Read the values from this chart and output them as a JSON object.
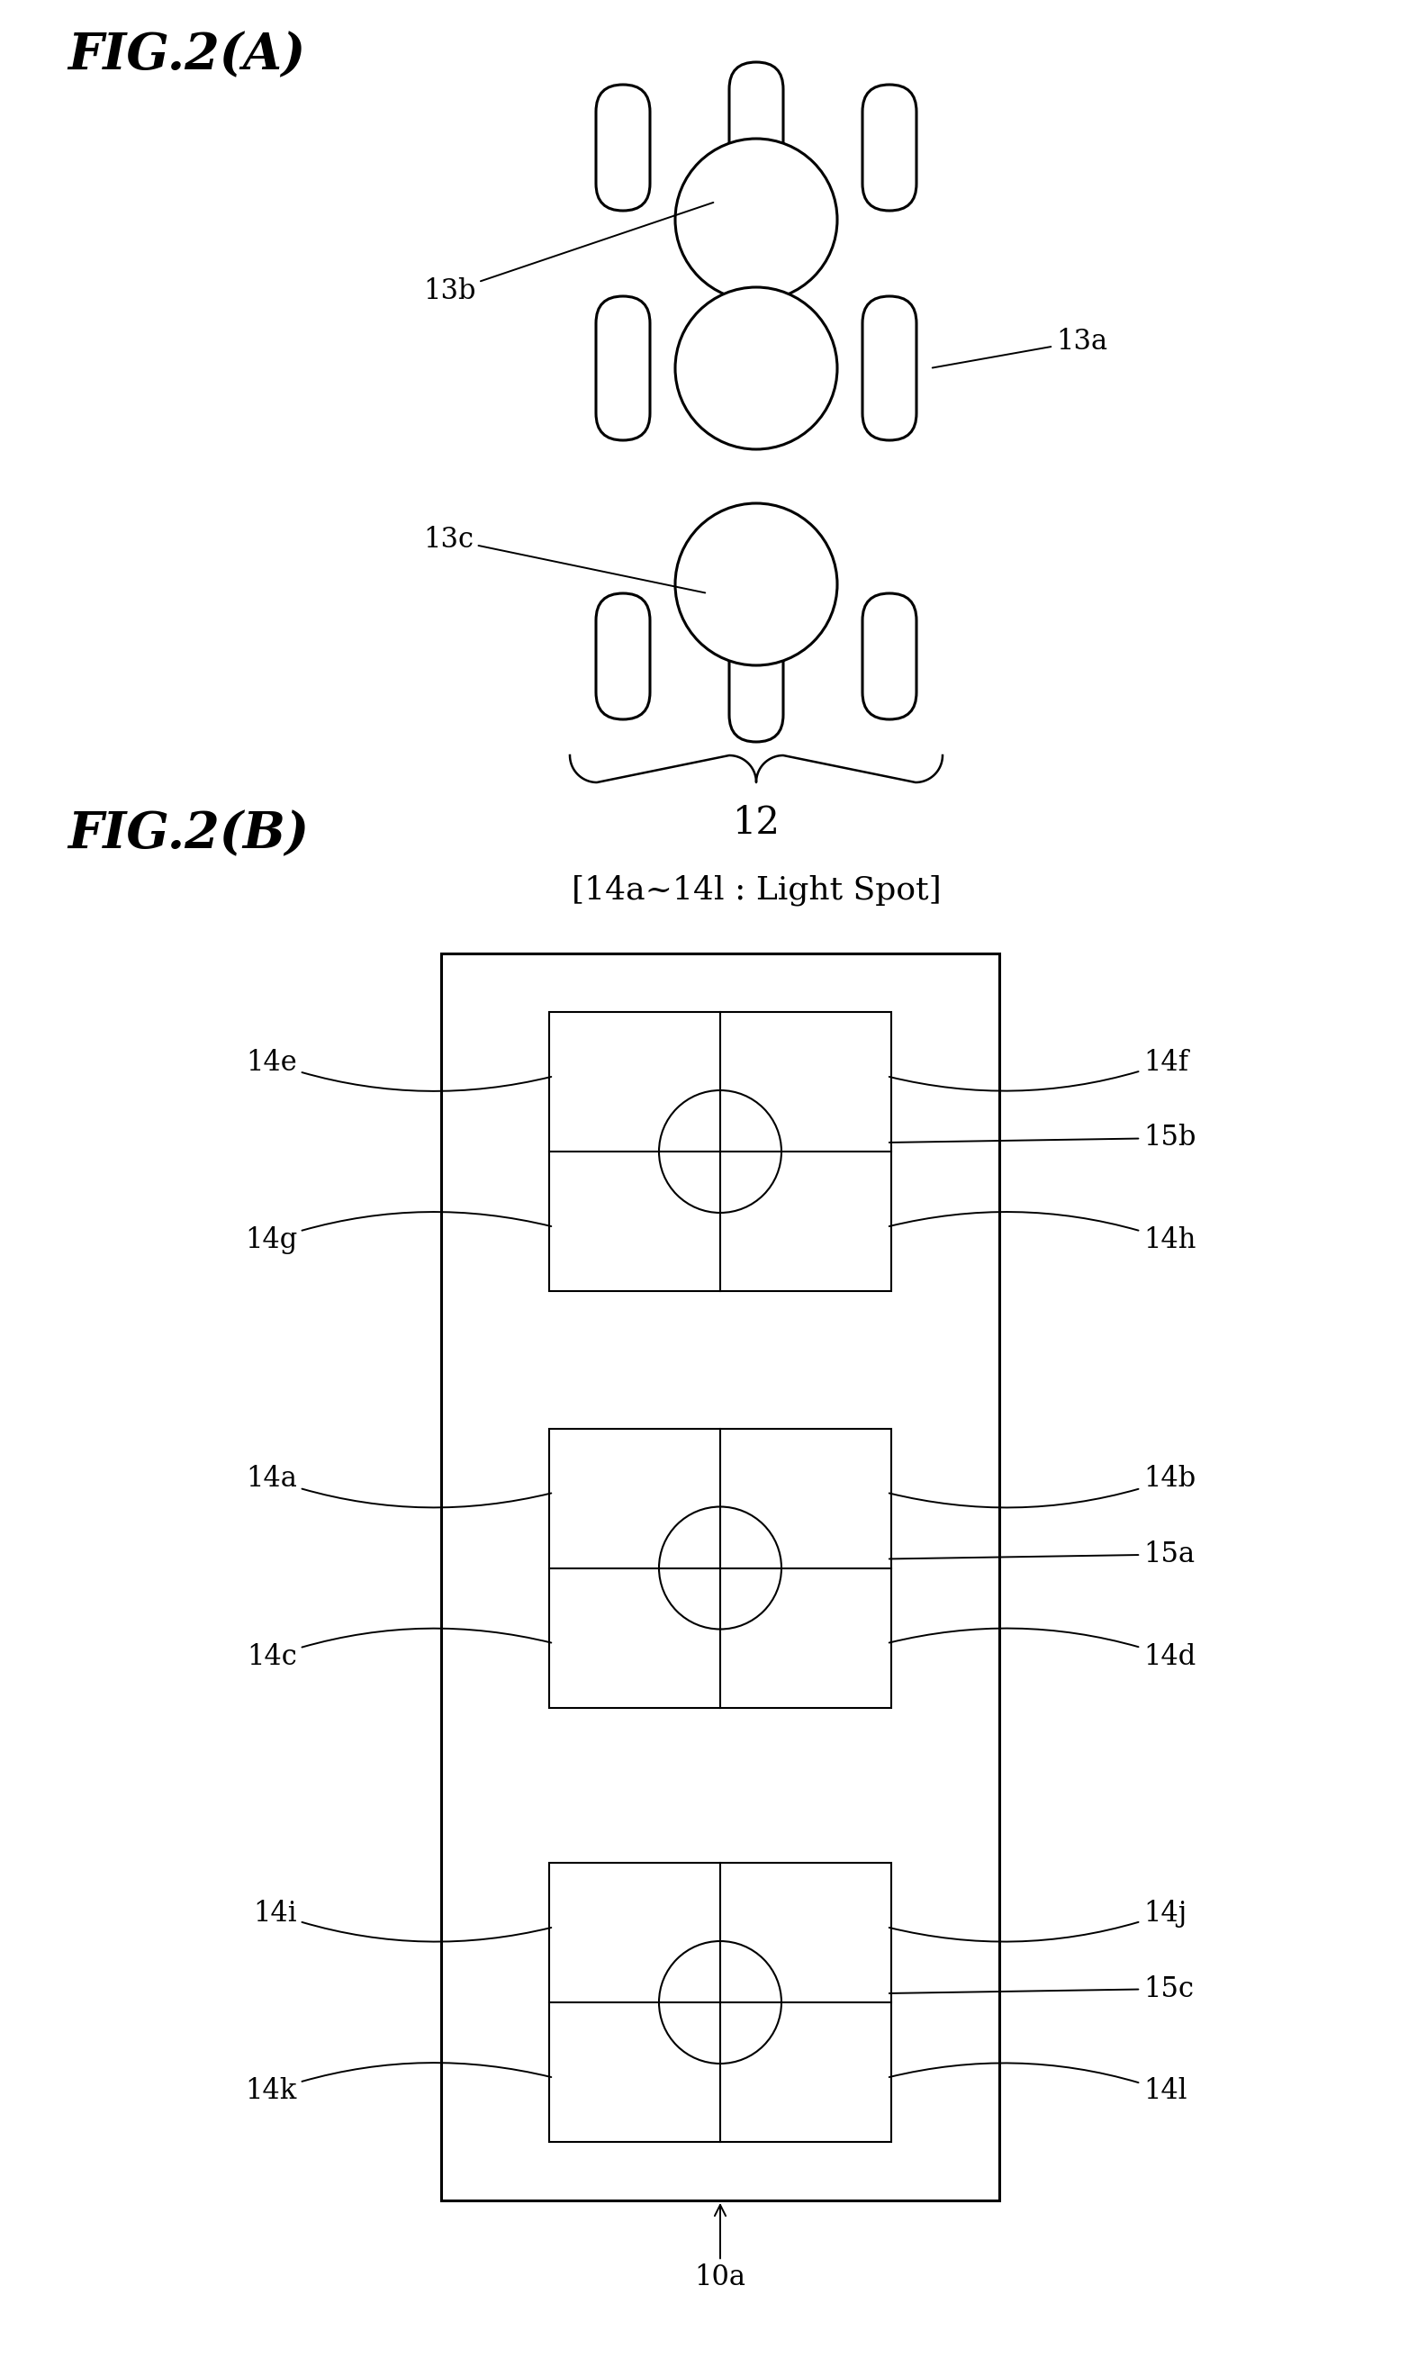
{
  "fig_A_title": "FIG.2(A)",
  "fig_B_title": "FIG.2(B)",
  "bg": "#ffffff",
  "lc": "#000000",
  "header_B": "[14a~14l : Light Spot]",
  "label_12": "12",
  "label_10a": "10a",
  "sections": [
    {
      "circle": "15b",
      "tl": "14e",
      "tr": "14f",
      "bl": "14g",
      "br": "14h"
    },
    {
      "circle": "15a",
      "tl": "14a",
      "tr": "14b",
      "bl": "14c",
      "br": "14d"
    },
    {
      "circle": "15c",
      "tl": "14i",
      "tr": "14j",
      "bl": "14k",
      "br": "14l"
    }
  ],
  "label_13a": "13a",
  "label_13b": "13b",
  "label_13c": "13c",
  "lw_main": 2.2,
  "lw_inner": 1.5,
  "lw_line": 1.4,
  "fontsize_title": 40,
  "fontsize_label": 22,
  "fontsize_header": 26
}
